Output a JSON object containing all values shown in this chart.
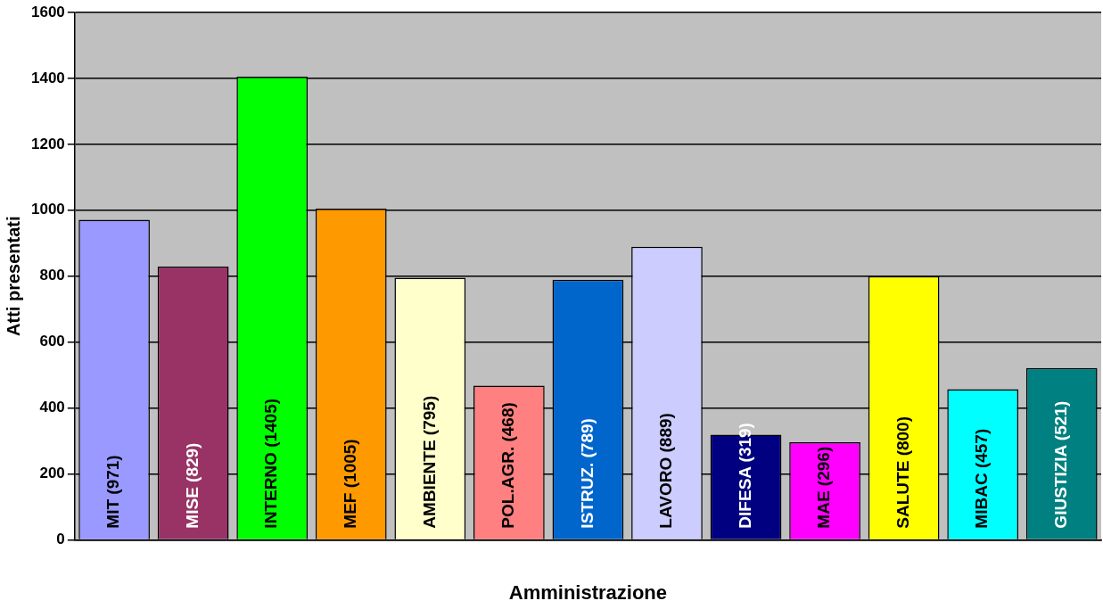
{
  "chart_data": {
    "type": "bar",
    "xlabel": "Amministrazione",
    "ylabel": "Atti presentati",
    "categories": [
      null,
      null,
      null,
      null,
      null,
      null,
      null,
      null,
      null,
      null,
      null,
      null,
      null
    ],
    "values": [
      971,
      829,
      1405,
      1005,
      795,
      468,
      789,
      889,
      319,
      296,
      800,
      457,
      521
    ],
    "colors": [
      "#9999ff",
      "#993366",
      "#00ff00",
      "#ff9900",
      "#ffffcc",
      "#ff8080",
      "#0066cc",
      "#ccccff",
      "#000080",
      "#ff00ff",
      "#ffff00",
      "#00ffff",
      "#008080"
    ],
    "value_labels": [
      "MIT (971)",
      "MISE (829)",
      "INTERNO (1405)",
      "MEF (1005)",
      "AMBIENTE (795)",
      "POL.AGR. (468)",
      "ISTRUZ. (789)",
      "LAVORO (889)",
      "DIFESA (319)",
      "MAE (296)",
      "SALUTE (800)",
      "MIBAC (457)",
      "GIUSTIZIA (521)"
    ],
    "ylim": [
      0,
      1600
    ],
    "yticks": [
      0,
      200,
      400,
      600,
      800,
      1000,
      1200,
      1400,
      1600
    ],
    "grid": "y",
    "legend": false
  }
}
